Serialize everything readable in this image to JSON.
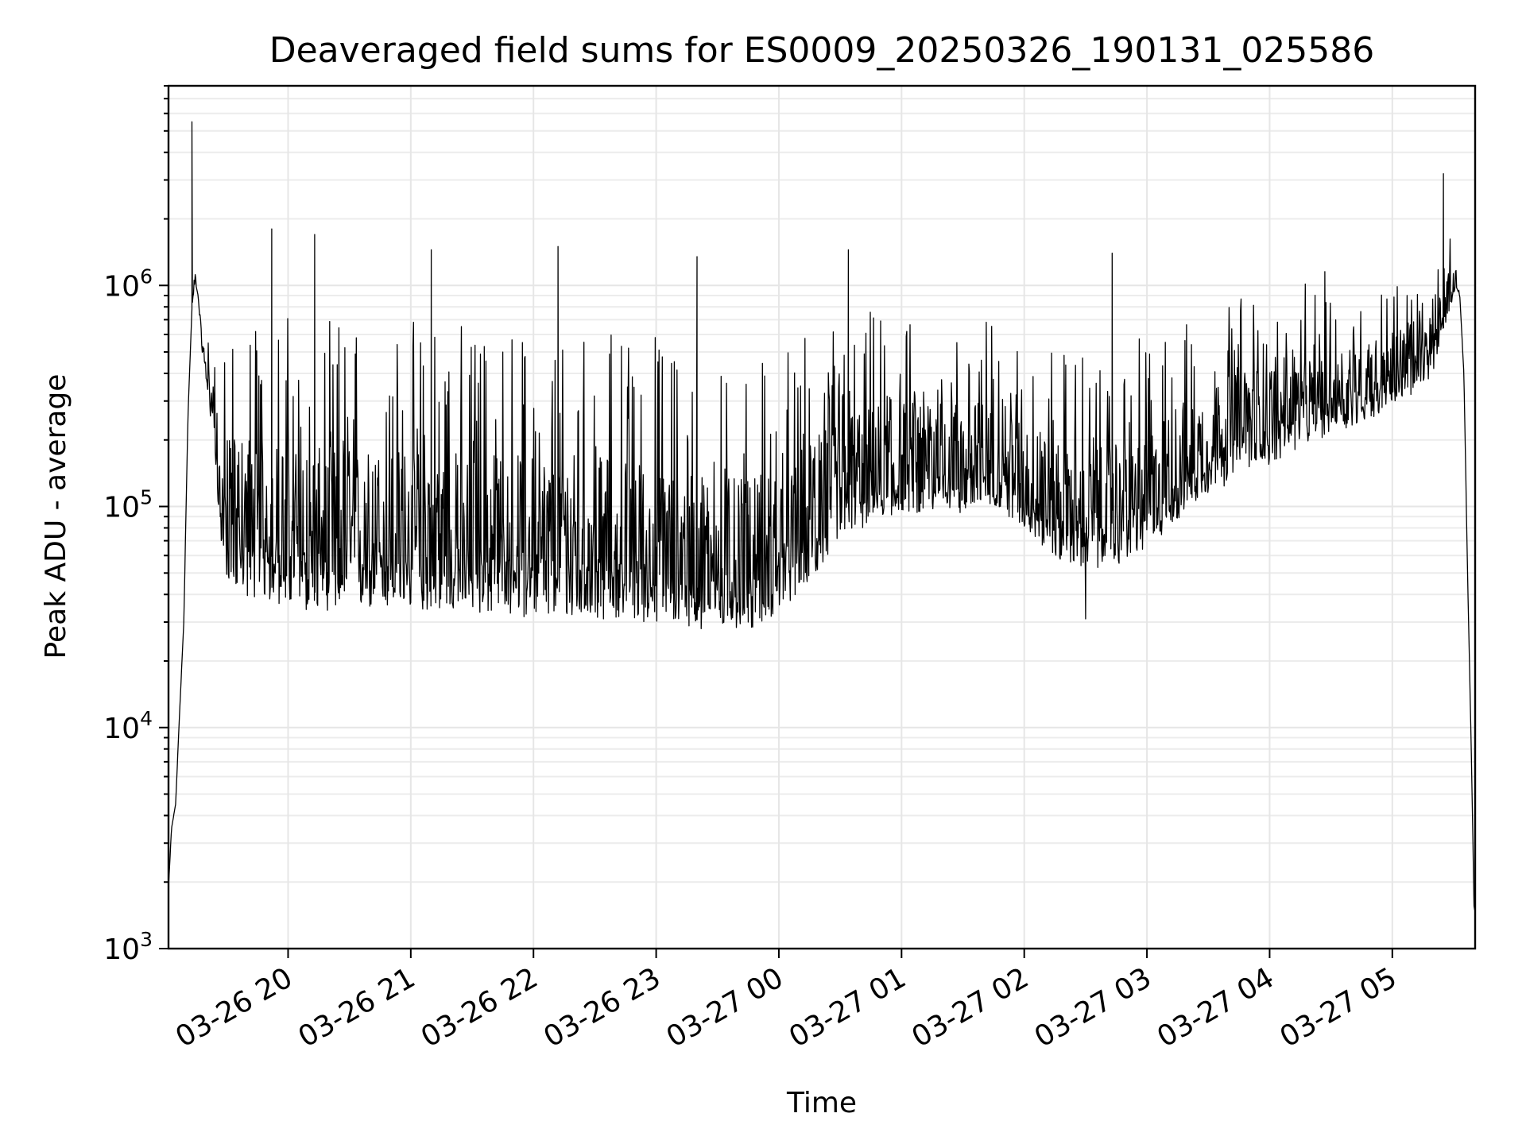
{
  "chart_data": {
    "type": "line",
    "title": "Deaveraged field sums for ES0009_20250326_190131_025586",
    "xlabel": "Time",
    "ylabel": "Peak ADU - average",
    "yscale": "log",
    "ylim": [
      1000,
      8000000
    ],
    "xlim": [
      "2025-03-26 19:01:31",
      "2025-03-27 05:40:30"
    ],
    "grid": true,
    "legend": "none",
    "line_color": "#000000",
    "x_ticks": [
      {
        "time": "2025-03-26 20:00",
        "label": "03-26 20"
      },
      {
        "time": "2025-03-26 21:00",
        "label": "03-26 21"
      },
      {
        "time": "2025-03-26 22:00",
        "label": "03-26 22"
      },
      {
        "time": "2025-03-26 23:00",
        "label": "03-26 23"
      },
      {
        "time": "2025-03-27 00:00",
        "label": "03-27 00"
      },
      {
        "time": "2025-03-27 01:00",
        "label": "03-27 01"
      },
      {
        "time": "2025-03-27 02:00",
        "label": "03-27 02"
      },
      {
        "time": "2025-03-27 03:00",
        "label": "03-27 03"
      },
      {
        "time": "2025-03-27 04:00",
        "label": "03-27 04"
      },
      {
        "time": "2025-03-27 05:00",
        "label": "03-27 05"
      }
    ],
    "y_ticks": [
      {
        "value": 1000,
        "base": "10",
        "exp": "3"
      },
      {
        "value": 10000,
        "base": "10",
        "exp": "4"
      },
      {
        "value": 100000,
        "base": "10",
        "exp": "5"
      },
      {
        "value": 1000000,
        "base": "10",
        "exp": "6"
      }
    ],
    "series": [
      {
        "x": [
          "2025-03-26 19:01:31",
          "2025-03-26 19:03:00",
          "2025-03-26 19:05:00",
          "2025-03-26 19:07:00",
          "2025-03-26 19:09:00",
          "2025-03-26 19:11:00",
          "2025-03-26 19:13:00",
          "2025-03-26 19:14:30",
          "2025-03-26 19:16:00",
          "2025-03-26 19:18:00",
          "2025-03-26 19:20:00",
          "2025-03-26 19:22:00",
          "2025-03-26 19:24:00",
          "2025-03-26 19:25:30",
          "2025-03-26 19:26:30",
          "2025-03-26 19:27:30",
          "2025-03-26 19:29:00",
          "2025-03-26 19:31:00",
          "2025-03-26 19:34:00",
          "2025-03-26 19:37:00",
          "2025-03-26 19:41:00",
          "2025-03-26 19:45:00",
          "2025-03-26 19:50:00",
          "2025-03-26 20:00:00",
          "2025-03-26 20:07:00",
          "2025-03-26 20:14:00",
          "2025-03-26 20:22:00",
          "2025-03-26 20:30:00",
          "2025-03-26 20:45:00",
          "2025-03-26 21:00:00",
          "2025-03-26 21:15:00",
          "2025-03-26 21:30:00",
          "2025-03-26 21:45:00",
          "2025-03-26 22:00:00",
          "2025-03-26 22:15:00",
          "2025-03-26 22:30:00",
          "2025-03-26 22:45:00",
          "2025-03-26 23:00:00",
          "2025-03-26 23:15:00",
          "2025-03-26 23:30:00",
          "2025-03-26 23:45:00",
          "2025-03-27 00:00:00",
          "2025-03-27 00:15:00",
          "2025-03-27 00:30:00",
          "2025-03-27 00:45:00",
          "2025-03-27 01:00:00",
          "2025-03-27 01:15:00",
          "2025-03-27 01:30:00",
          "2025-03-27 01:45:00",
          "2025-03-27 02:00:00",
          "2025-03-27 02:15:00",
          "2025-03-27 02:30:00",
          "2025-03-27 02:45:00",
          "2025-03-27 03:00:00",
          "2025-03-27 03:15:00",
          "2025-03-27 03:30:00",
          "2025-03-27 03:45:00",
          "2025-03-27 04:00:00",
          "2025-03-27 04:15:00",
          "2025-03-27 04:30:00",
          "2025-03-27 04:45:00",
          "2025-03-27 05:00:00",
          "2025-03-27 05:10:00",
          "2025-03-27 05:20:00",
          "2025-03-27 05:24:00",
          "2025-03-27 05:28:00",
          "2025-03-27 05:31:00",
          "2025-03-27 05:33:00",
          "2025-03-27 05:35:00",
          "2025-03-27 05:37:00",
          "2025-03-27 05:38:30",
          "2025-03-27 05:40:00"
        ],
        "baseline": [
          1900,
          3500,
          4500,
          12000,
          30000,
          250000,
          800000,
          1050000,
          900000,
          500000,
          400000,
          300000,
          250000,
          150000,
          100000,
          85000,
          80000,
          78000,
          75000,
          70000,
          70000,
          68000,
          65000,
          62000,
          60000,
          60000,
          60000,
          60000,
          60000,
          60000,
          60000,
          58000,
          57000,
          56000,
          55000,
          55000,
          55000,
          52000,
          50000,
          48000,
          47000,
          55000,
          75000,
          110000,
          130000,
          140000,
          140000,
          140000,
          150000,
          120000,
          90000,
          80000,
          85000,
          100000,
          130000,
          170000,
          200000,
          230000,
          260000,
          300000,
          330000,
          380000,
          420000,
          500000,
          700000,
          900000,
          1000000,
          900000,
          400000,
          40000,
          9000,
          1500
        ],
        "spread_low": [
          1,
          1,
          1,
          1,
          1,
          1,
          1,
          1,
          1,
          1,
          1.5,
          2,
          2.5,
          3,
          5,
          6,
          7,
          8,
          9,
          10,
          10,
          10,
          10,
          10,
          10,
          10,
          10,
          10,
          10,
          10,
          10,
          10,
          10,
          10,
          10,
          10,
          10,
          10,
          9,
          9,
          9,
          8,
          7,
          6,
          6,
          5,
          5,
          5,
          5,
          5,
          6,
          6,
          6,
          6,
          5,
          5,
          5,
          5,
          4,
          4,
          4,
          3,
          3,
          3,
          2,
          2,
          1,
          1,
          1,
          1,
          1,
          1
        ],
        "spread_high": [
          1,
          1,
          1,
          1,
          1,
          1,
          1,
          1.2,
          1.2,
          1.3,
          1.5,
          2,
          2.5,
          3,
          4,
          5,
          6,
          8,
          10,
          12,
          12,
          12,
          12,
          12,
          12,
          12,
          12,
          12,
          12,
          12,
          12,
          12,
          12,
          12,
          12,
          12,
          12,
          12,
          11,
          10,
          10,
          9,
          8,
          7,
          6,
          5,
          5,
          5,
          5,
          5,
          6,
          6,
          6,
          6,
          5,
          5,
          5,
          4,
          4,
          4,
          3,
          3,
          3,
          2,
          2,
          2,
          1.5,
          1,
          1,
          1,
          1,
          1
        ],
        "peaks": [
          {
            "x": "2025-03-26 19:13:00",
            "y": 5500000
          },
          {
            "x": "2025-03-26 19:52:00",
            "y": 1800000
          },
          {
            "x": "2025-03-26 20:13:00",
            "y": 1700000
          },
          {
            "x": "2025-03-26 21:10:00",
            "y": 1450000
          },
          {
            "x": "2025-03-26 22:12:00",
            "y": 1500000
          },
          {
            "x": "2025-03-26 23:20:00",
            "y": 1350000
          },
          {
            "x": "2025-03-27 00:34:00",
            "y": 1450000
          },
          {
            "x": "2025-03-27 02:43:00",
            "y": 1400000
          },
          {
            "x": "2025-03-27 05:25:00",
            "y": 3200000
          }
        ],
        "lows": [
          {
            "x": "2025-03-26 23:22:00",
            "y": 28000
          },
          {
            "x": "2025-03-26 23:45:00",
            "y": 30000
          },
          {
            "x": "2025-03-27 02:30:00",
            "y": 31000
          }
        ]
      }
    ]
  }
}
